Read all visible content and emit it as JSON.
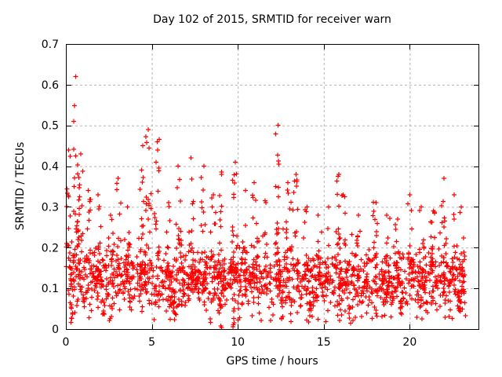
{
  "page": {
    "background": "#ffffff"
  },
  "chart_data": {
    "type": "scatter",
    "title": "Day 102 of 2015, SRMTID for receiver warn",
    "xlabel": "GPS time / hours",
    "ylabel": "SRMTID / TECUs",
    "xlim": [
      0,
      24
    ],
    "ylim": [
      0,
      0.7
    ],
    "xtick_values": [
      0,
      5,
      10,
      15,
      20
    ],
    "xtick_labels": [
      "0",
      "5",
      "10",
      "15",
      "20"
    ],
    "ytick_values": [
      0,
      0.1,
      0.2,
      0.3,
      0.4,
      0.5,
      0.6,
      0.7
    ],
    "ytick_labels": [
      "0",
      "0.1",
      "0.2",
      "0.3",
      "0.4",
      "0.5",
      "0.6",
      "0.7"
    ],
    "grid": true,
    "grid_color": "#b3b3b3",
    "grid_dash": "3 3",
    "border_color": "#000000",
    "tick_length": 6,
    "marker": "plus",
    "marker_color": "#ff0000",
    "marker_size": 7,
    "legend": null,
    "seed": 1021502,
    "x_data_range": [
      0.05,
      23.25
    ],
    "baseline": {
      "count": 1500,
      "y_base": 0.04,
      "pair_spread": 0.0775,
      "tail_prob": 0.18,
      "tail_extra": 0.075,
      "low_prob": 0.07,
      "low_min": 0.015,
      "low_span": 0.055
    },
    "spikes": [
      [
        0.12,
        0.44,
        16
      ],
      [
        0.55,
        0.62,
        26
      ],
      [
        0.85,
        0.43,
        20
      ],
      [
        1.3,
        0.34,
        12
      ],
      [
        1.9,
        0.33,
        10
      ],
      [
        2.6,
        0.28,
        8
      ],
      [
        3.05,
        0.37,
        12
      ],
      [
        3.6,
        0.3,
        8
      ],
      [
        4.45,
        0.45,
        22
      ],
      [
        4.8,
        0.49,
        18
      ],
      [
        5.3,
        0.46,
        16
      ],
      [
        6.0,
        0.31,
        8
      ],
      [
        6.55,
        0.4,
        12
      ],
      [
        7.3,
        0.42,
        16
      ],
      [
        8.0,
        0.4,
        14
      ],
      [
        8.6,
        0.33,
        10
      ],
      [
        9.05,
        0.38,
        12
      ],
      [
        9.8,
        0.41,
        18
      ],
      [
        10.45,
        0.34,
        10
      ],
      [
        11.0,
        0.36,
        14
      ],
      [
        11.6,
        0.31,
        8
      ],
      [
        12.3,
        0.5,
        24
      ],
      [
        12.95,
        0.36,
        12
      ],
      [
        13.35,
        0.38,
        14
      ],
      [
        14.0,
        0.3,
        8
      ],
      [
        14.7,
        0.28,
        8
      ],
      [
        15.3,
        0.3,
        8
      ],
      [
        15.85,
        0.38,
        16
      ],
      [
        16.15,
        0.33,
        10
      ],
      [
        17.0,
        0.28,
        8
      ],
      [
        18.0,
        0.31,
        10
      ],
      [
        18.7,
        0.28,
        8
      ],
      [
        19.3,
        0.27,
        8
      ],
      [
        20.0,
        0.33,
        12
      ],
      [
        20.7,
        0.3,
        10
      ],
      [
        21.35,
        0.29,
        10
      ],
      [
        22.0,
        0.37,
        16
      ],
      [
        22.6,
        0.33,
        12
      ],
      [
        23.0,
        0.3,
        10
      ]
    ],
    "low_columns": [
      [
        0.35,
        0.01
      ],
      [
        2.2,
        0.03
      ],
      [
        6.3,
        0.02
      ],
      [
        9.0,
        0.003
      ],
      [
        9.75,
        0.005
      ],
      [
        12.6,
        0.02
      ],
      [
        14.2,
        0.03
      ],
      [
        16.5,
        0.01
      ],
      [
        19.5,
        0.03
      ],
      [
        21.0,
        0.02
      ],
      [
        22.9,
        0.03
      ]
    ]
  }
}
